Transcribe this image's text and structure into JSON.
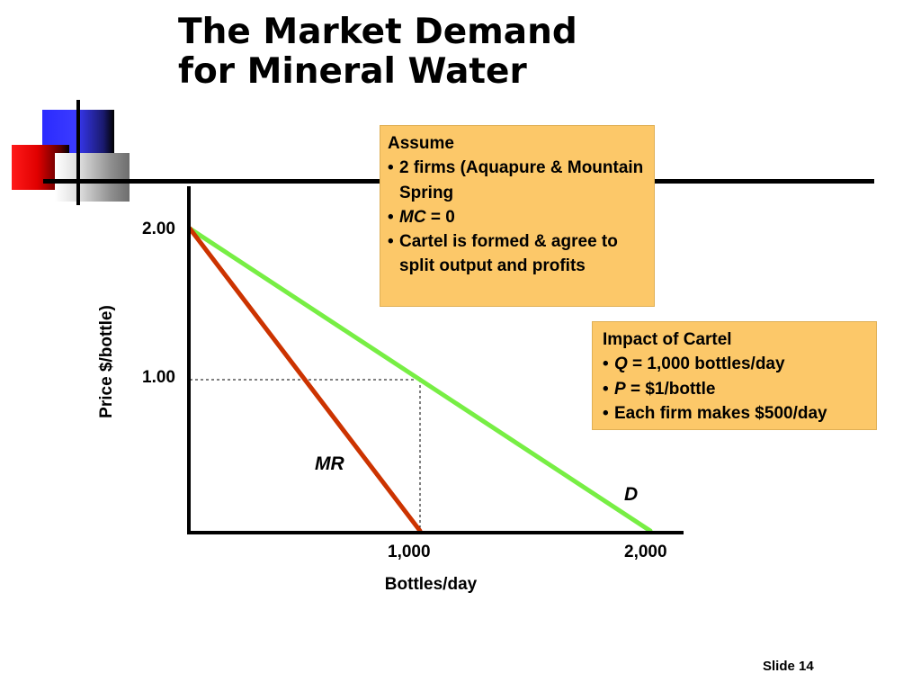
{
  "title": {
    "line1": "The Market Demand",
    "line2": "for Mineral Water"
  },
  "slide_number": "Slide 14",
  "assume_box": {
    "heading": "Assume",
    "items": [
      {
        "prefix": "",
        "text": "2 firms (Aquapure & Mountain Spring"
      },
      {
        "prefix": "MC",
        "text": " = 0"
      },
      {
        "prefix": "",
        "text": "Cartel is formed & agree to split output and profits"
      }
    ]
  },
  "impact_box": {
    "heading": "Impact of Cartel",
    "items": [
      {
        "prefix": "Q",
        "text": " = 1,000 bottles/day"
      },
      {
        "prefix": "P",
        "text": " = $1/bottle"
      },
      {
        "prefix": "",
        "text": "Each firm makes $500/day"
      }
    ]
  },
  "colors": {
    "demand": "#77ee44",
    "mr": "#cc3300",
    "box": "#fcc869",
    "axis": "#000000"
  },
  "decor_icons": [
    "blue-square",
    "red-square",
    "gray-square"
  ],
  "chart_data": {
    "type": "line",
    "xlabel": "Bottles/day",
    "ylabel": "Price $/bottle)",
    "xlim": [
      0,
      2000
    ],
    "ylim": [
      0,
      2.0
    ],
    "x_ticks": [
      "1,000",
      "2,000"
    ],
    "y_ticks": [
      "2.00",
      "1.00"
    ],
    "series": [
      {
        "name": "D",
        "x": [
          0,
          2000
        ],
        "y": [
          2.0,
          0
        ]
      },
      {
        "name": "MR",
        "x": [
          0,
          1000
        ],
        "y": [
          2.0,
          0
        ]
      }
    ],
    "reference_point": {
      "x": 1000,
      "y": 1.0
    }
  }
}
